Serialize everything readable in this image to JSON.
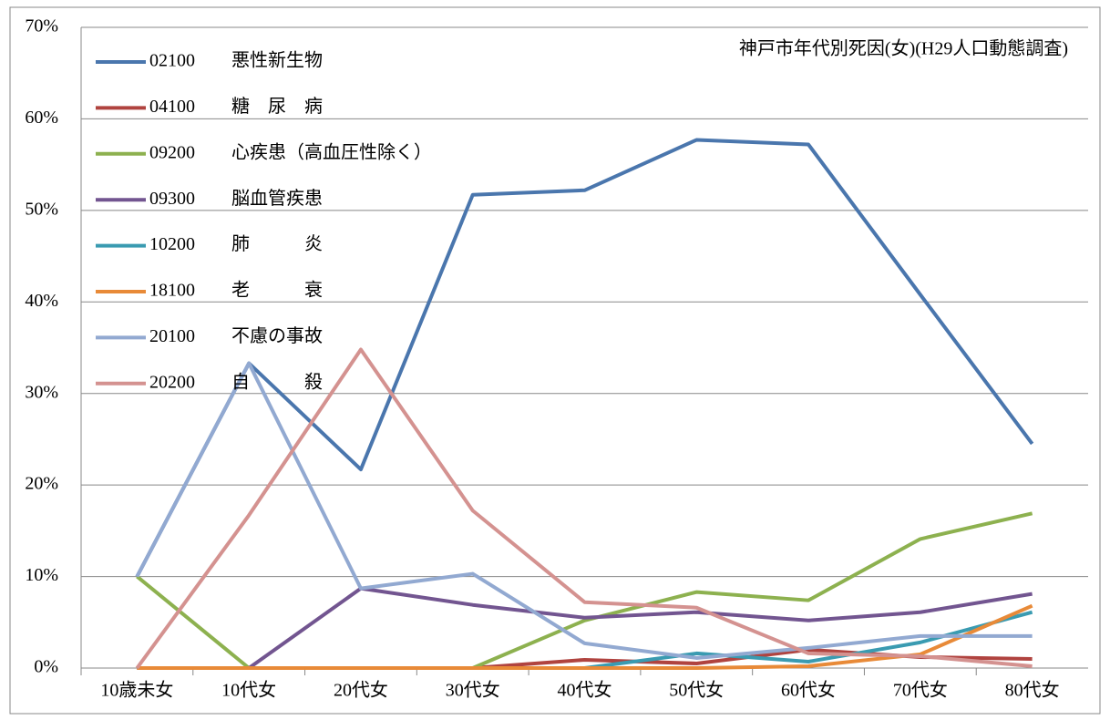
{
  "chart_data": {
    "type": "line",
    "title": "神戸市年代別死因(女)(H29人口動態調査)",
    "categories": [
      "10歳未女",
      "10代女",
      "20代女",
      "30代女",
      "40代女",
      "50代女",
      "60代女",
      "70代女",
      "80代女"
    ],
    "ylim": [
      0,
      70
    ],
    "yticks": [
      {
        "value": 0,
        "label": "0%"
      },
      {
        "value": 10,
        "label": "10%"
      },
      {
        "value": 20,
        "label": "20%"
      },
      {
        "value": 30,
        "label": "30%"
      },
      {
        "value": 40,
        "label": "40%"
      },
      {
        "value": 50,
        "label": "50%"
      },
      {
        "value": 60,
        "label": "60%"
      },
      {
        "value": 70,
        "label": "70%"
      }
    ],
    "grid": true,
    "legend": "top-left",
    "series": [
      {
        "name": "02100　　悪性新生物",
        "color": "#4a76ad",
        "values": [
          10,
          33.3,
          21.7,
          51.7,
          52.2,
          57.7,
          57.2,
          40.8,
          24.5
        ]
      },
      {
        "name": "04100　　糖　尿　病",
        "color": "#b0433f",
        "values": [
          0,
          0,
          0,
          0,
          0.9,
          0.5,
          2.0,
          1.2,
          1.0
        ]
      },
      {
        "name": "09200　　心疾患（高血圧性除く）",
        "color": "#8db14f",
        "values": [
          10,
          0,
          0,
          0,
          5.2,
          8.3,
          7.4,
          14.1,
          16.9
        ]
      },
      {
        "name": "09300　　脳血管疾患",
        "color": "#725590",
        "values": [
          0,
          0,
          8.7,
          6.9,
          5.5,
          6.1,
          5.2,
          6.1,
          8.1
        ]
      },
      {
        "name": "10200　　肺　　　炎",
        "color": "#3a9bb1",
        "values": [
          0,
          0,
          0,
          0,
          0,
          1.6,
          0.7,
          2.8,
          6.1
        ]
      },
      {
        "name": "18100　　老　　　衰",
        "color": "#e88a38",
        "values": [
          0,
          0,
          0,
          0,
          0,
          0,
          0.2,
          1.5,
          6.8
        ]
      },
      {
        "name": "20100　　不慮の事故",
        "color": "#92a9d1",
        "values": [
          10,
          33.3,
          8.7,
          10.3,
          2.7,
          1.1,
          2.2,
          3.5,
          3.5
        ]
      },
      {
        "name": "20200　　自　　　殺",
        "color": "#d49290",
        "values": [
          0,
          16.7,
          34.8,
          17.2,
          7.2,
          6.6,
          1.6,
          1.3,
          0.2
        ]
      }
    ]
  }
}
